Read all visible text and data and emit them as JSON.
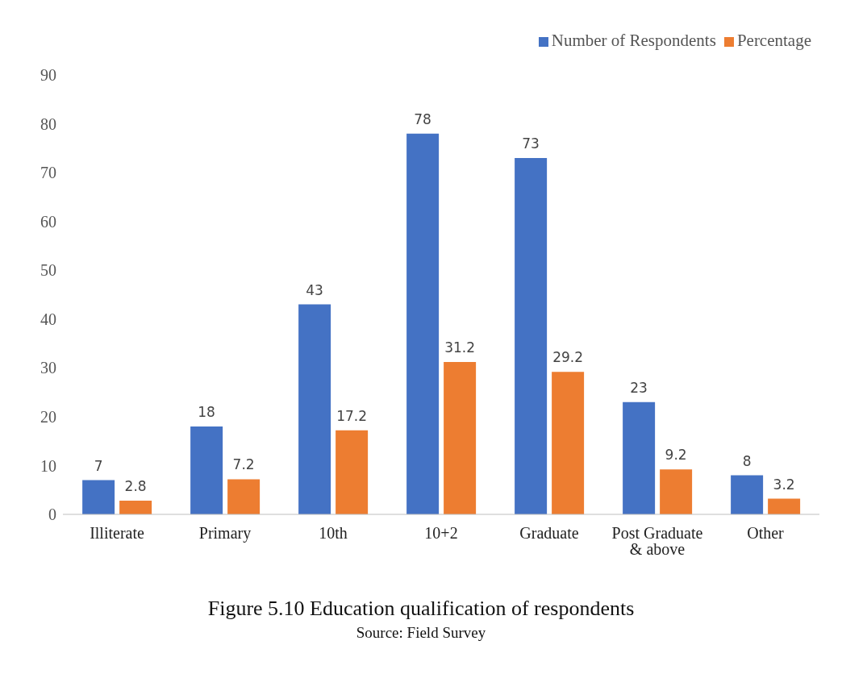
{
  "chart_data": {
    "type": "bar",
    "title": "Figure 5.10 Education qualification of respondents",
    "annotations": [
      "Source: Field Survey"
    ],
    "categories": [
      "Illiterate",
      "Primary",
      "10th",
      "10+2",
      "Graduate",
      "Post Graduate & above",
      "Other"
    ],
    "series": [
      {
        "name": "Number of Respondents",
        "color": "#4472c4",
        "values": [
          7,
          18,
          43,
          78,
          73,
          23,
          8
        ]
      },
      {
        "name": "Percentage",
        "color": "#ed7d31",
        "values": [
          2.8,
          7.2,
          17.2,
          31.2,
          29.2,
          9.2,
          3.2
        ]
      }
    ],
    "ylim": [
      0,
      90
    ],
    "yticks": [
      0,
      10,
      20,
      30,
      40,
      50,
      60,
      70,
      80,
      90
    ],
    "grid": false,
    "legend": "top right",
    "data_labels": true
  }
}
